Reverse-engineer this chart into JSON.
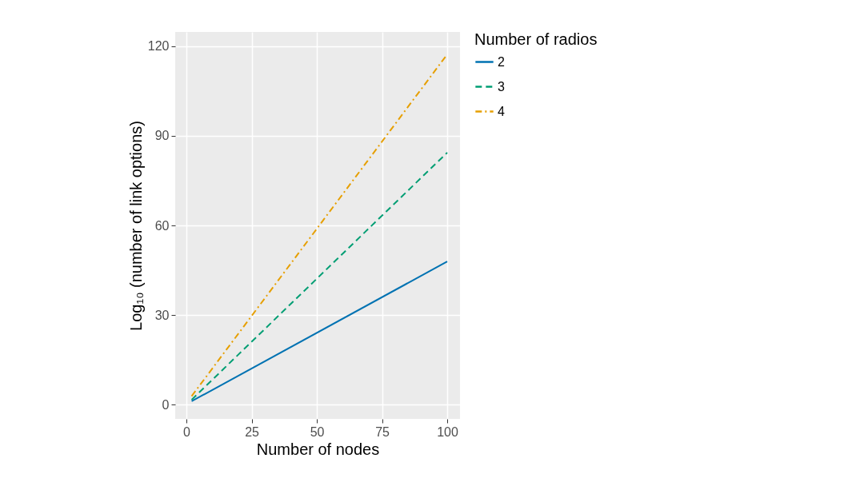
{
  "chart_data": {
    "type": "line",
    "xlabel": "Number of nodes",
    "ylabel": "Log₁₀ (number of link options)",
    "legend_title": "Number of radios",
    "x": [
      2,
      100
    ],
    "series": [
      {
        "name": "2",
        "color": "#0072b2",
        "values": [
          1.1,
          47.9
        ],
        "line_style": "solid"
      },
      {
        "name": "3",
        "color": "#009e73",
        "values": [
          1.6,
          84.4
        ],
        "line_style": "dashed"
      },
      {
        "name": "4",
        "color": "#e69f00",
        "values": [
          2.8,
          117.3
        ],
        "line_style": "dashdot"
      }
    ],
    "xlim": [
      -4.3,
      104.9
    ],
    "ylim": [
      -4.8,
      124.8
    ],
    "xticks": [
      0,
      25,
      50,
      75,
      100
    ],
    "yticks": [
      0,
      30,
      60,
      90,
      120
    ],
    "grid": true,
    "legend": "right",
    "marker": "none"
  }
}
